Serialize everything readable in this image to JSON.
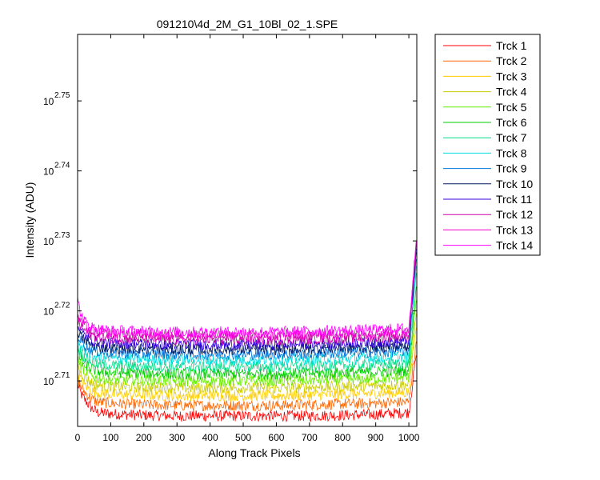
{
  "chart_data": {
    "type": "line",
    "title": "091210\\4d_2M_G1_10Bl_02_1.SPE",
    "xlabel": "Along Track Pixels",
    "ylabel": "Intensity (ADU)",
    "xlim": [
      0,
      1024
    ],
    "ylim_log10": [
      2.7035,
      2.7595
    ],
    "y_scale": "log",
    "grid": false,
    "legend_position": "outside-right",
    "x_ticks": [
      0,
      100,
      200,
      300,
      400,
      500,
      600,
      700,
      800,
      900,
      1000
    ],
    "y_ticks": [
      {
        "base": "10",
        "exp": "2.71",
        "log10": 2.71
      },
      {
        "base": "10",
        "exp": "2.72",
        "log10": 2.72
      },
      {
        "base": "10",
        "exp": "2.73",
        "log10": 2.73
      },
      {
        "base": "10",
        "exp": "2.74",
        "log10": 2.74
      },
      {
        "base": "10",
        "exp": "2.75",
        "log10": 2.75
      }
    ],
    "x_samples": [
      0,
      10,
      20,
      40,
      60,
      100,
      200,
      300,
      400,
      500,
      600,
      700,
      800,
      900,
      1000,
      1023
    ],
    "series": [
      {
        "name": "Trck 1",
        "color": "#ff0000",
        "noise": 0.0008,
        "log10_values": [
          2.7095,
          2.7082,
          2.7074,
          2.7062,
          2.7055,
          2.7053,
          2.7051,
          2.705,
          2.705,
          2.705,
          2.705,
          2.705,
          2.7051,
          2.7052,
          2.7055,
          2.714
        ]
      },
      {
        "name": "Trck 2",
        "color": "#ff6600",
        "noise": 0.0008,
        "log10_values": [
          2.7104,
          2.7092,
          2.7085,
          2.7075,
          2.707,
          2.7068,
          2.7066,
          2.7065,
          2.7065,
          2.7065,
          2.7065,
          2.7066,
          2.7067,
          2.7068,
          2.707,
          2.716
        ]
      },
      {
        "name": "Trck 3",
        "color": "#ffcc00",
        "noise": 0.0008,
        "log10_values": [
          2.7113,
          2.7102,
          2.7095,
          2.7087,
          2.7083,
          2.7081,
          2.708,
          2.7079,
          2.7079,
          2.7079,
          2.7079,
          2.708,
          2.7081,
          2.7082,
          2.7084,
          2.718
        ]
      },
      {
        "name": "Trck 4",
        "color": "#cccc00",
        "noise": 0.0008,
        "log10_values": [
          2.7122,
          2.7112,
          2.7106,
          2.7098,
          2.7094,
          2.7092,
          2.7091,
          2.709,
          2.709,
          2.709,
          2.709,
          2.7091,
          2.7092,
          2.7093,
          2.7095,
          2.72
        ]
      },
      {
        "name": "Trck 5",
        "color": "#66ee00",
        "noise": 0.0008,
        "log10_values": [
          2.7131,
          2.7122,
          2.7116,
          2.7108,
          2.7104,
          2.7102,
          2.7101,
          2.71,
          2.71,
          2.71,
          2.71,
          2.7101,
          2.7102,
          2.7103,
          2.7105,
          2.722
        ]
      },
      {
        "name": "Trck 6",
        "color": "#00cc00",
        "noise": 0.0008,
        "log10_values": [
          2.714,
          2.7131,
          2.7125,
          2.7118,
          2.7114,
          2.7112,
          2.7111,
          2.711,
          2.711,
          2.711,
          2.711,
          2.7111,
          2.7112,
          2.7113,
          2.7115,
          2.724
        ]
      },
      {
        "name": "Trck 7",
        "color": "#00dd88",
        "noise": 0.0008,
        "log10_values": [
          2.7149,
          2.714,
          2.7135,
          2.7128,
          2.7124,
          2.7122,
          2.7121,
          2.712,
          2.712,
          2.712,
          2.712,
          2.7121,
          2.7122,
          2.7123,
          2.7125,
          2.726
        ]
      },
      {
        "name": "Trck 8",
        "color": "#00dddd",
        "noise": 0.0008,
        "log10_values": [
          2.7157,
          2.7149,
          2.7144,
          2.7137,
          2.7134,
          2.7132,
          2.7131,
          2.713,
          2.713,
          2.713,
          2.713,
          2.7131,
          2.7132,
          2.7133,
          2.7135,
          2.727
        ]
      },
      {
        "name": "Trck 9",
        "color": "#0077dd",
        "noise": 0.0008,
        "log10_values": [
          2.7165,
          2.7157,
          2.7152,
          2.7145,
          2.7142,
          2.714,
          2.7139,
          2.7138,
          2.7138,
          2.7138,
          2.7138,
          2.7139,
          2.714,
          2.7141,
          2.7143,
          2.728
        ]
      },
      {
        "name": "Trck 10",
        "color": "#001a66",
        "noise": 0.0008,
        "log10_values": [
          2.7172,
          2.7164,
          2.7159,
          2.7152,
          2.7149,
          2.7147,
          2.7146,
          2.7145,
          2.7145,
          2.7145,
          2.7145,
          2.7146,
          2.7147,
          2.7148,
          2.715,
          2.729
        ]
      },
      {
        "name": "Trck 11",
        "color": "#3300dd",
        "noise": 0.0008,
        "log10_values": [
          2.7179,
          2.7171,
          2.7166,
          2.7159,
          2.7156,
          2.7154,
          2.7153,
          2.7152,
          2.7152,
          2.7152,
          2.7152,
          2.7153,
          2.7154,
          2.7155,
          2.7157,
          2.7295
        ]
      },
      {
        "name": "Trck 12",
        "color": "#cc00aa",
        "noise": 0.0008,
        "log10_values": [
          2.7186,
          2.7178,
          2.7173,
          2.7166,
          2.7163,
          2.7161,
          2.716,
          2.7159,
          2.7159,
          2.7159,
          2.7159,
          2.716,
          2.7161,
          2.7162,
          2.7164,
          2.73
        ]
      },
      {
        "name": "Trck 13",
        "color": "#ee00cc",
        "noise": 0.0008,
        "log10_values": [
          2.7192,
          2.7184,
          2.7179,
          2.7172,
          2.7169,
          2.7167,
          2.7166,
          2.7165,
          2.7165,
          2.7165,
          2.7165,
          2.7166,
          2.7167,
          2.7168,
          2.717,
          2.7302
        ]
      },
      {
        "name": "Trck 14",
        "color": "#ff00ff",
        "noise": 0.0008,
        "log10_values": [
          2.7215,
          2.7195,
          2.7186,
          2.7178,
          2.7174,
          2.7172,
          2.7171,
          2.717,
          2.717,
          2.717,
          2.717,
          2.7171,
          2.7172,
          2.7173,
          2.7175,
          2.7305
        ]
      }
    ]
  }
}
